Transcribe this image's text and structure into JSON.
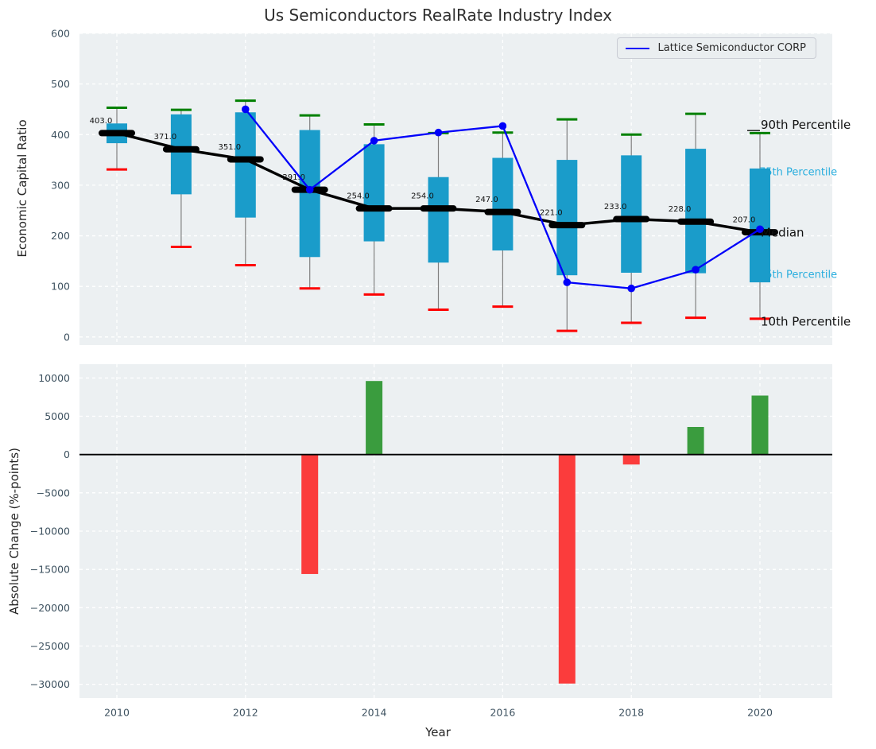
{
  "title": "Us Semiconductors RealRate Industry Index",
  "colors": {
    "panel_bg": "#ecf0f2",
    "grid": "#ffffff",
    "box_fill": "#1a9cca",
    "whisker": "#808080",
    "p90_cap": "#008000",
    "p10_cap": "#fe0000",
    "median_line": "#000000",
    "company_line": "#0000fa",
    "bar_positive": "#3a9c3e",
    "bar_negative": "#fb3c3c",
    "tick_label": "#3e5260",
    "annotation_black": "#111111",
    "annotation_cyan": "#2aaede"
  },
  "chart_data": [
    {
      "type": "box-line",
      "title": "Us Semiconductors RealRate Industry Index",
      "ylabel": "Economic Capital Ratio",
      "ylim": [
        -16,
        600
      ],
      "yticks": [
        0,
        100,
        200,
        300,
        400,
        500,
        600
      ],
      "grid": "white dashed on light gray",
      "legend_label": "Lattice Semiconductor CORP",
      "legend_position": "upper right",
      "years": [
        2010,
        2011,
        2012,
        2013,
        2014,
        2015,
        2016,
        2017,
        2018,
        2019,
        2020
      ],
      "series": [
        {
          "name": "median",
          "values": [
            403,
            371,
            351,
            291,
            254,
            254,
            247,
            221,
            233,
            228,
            207
          ]
        },
        {
          "name": "q3_75th",
          "values": [
            422,
            440,
            444,
            409,
            381,
            316,
            354,
            350,
            359,
            372,
            333
          ]
        },
        {
          "name": "q1_25th",
          "values": [
            383,
            282,
            236,
            158,
            189,
            147,
            171,
            122,
            127,
            126,
            108
          ]
        },
        {
          "name": "p90",
          "values": [
            453,
            449,
            467,
            438,
            420,
            403,
            404,
            430,
            400,
            441,
            403
          ]
        },
        {
          "name": "p10",
          "values": [
            331,
            178,
            142,
            96,
            84,
            54,
            60,
            12,
            28,
            38,
            36
          ]
        },
        {
          "name": "Lattice Semiconductor CORP",
          "values": [
            null,
            null,
            450,
            291,
            388,
            404,
            417,
            108,
            96,
            133,
            213
          ]
        }
      ],
      "median_labels": [
        "403.0",
        "371.0",
        "351.0",
        "291.0",
        "254.0",
        "254.0",
        "247.0",
        "221.0",
        "233.0",
        "228.0",
        "207.0"
      ],
      "annotations": [
        {
          "label": "90th Percentile",
          "y_value": 419,
          "color": "black",
          "size": 15
        },
        {
          "label": "75th Percentile",
          "y_value": 325,
          "color": "cyan",
          "size": 13
        },
        {
          "label": "Median",
          "y_value": 206,
          "color": "black",
          "size": 15
        },
        {
          "label": "25th Percentile",
          "y_value": 122,
          "color": "cyan",
          "size": 13
        },
        {
          "label": "10th Percentile",
          "y_value": 30,
          "color": "black",
          "size": 15
        }
      ]
    },
    {
      "type": "bar",
      "ylabel": "Absolute Change (%-points)",
      "xlabel": "Year",
      "ylim": [
        -31800,
        11800
      ],
      "yticks": [
        10000,
        5000,
        0,
        -5000,
        -10000,
        -15000,
        -20000,
        -25000,
        -30000
      ],
      "xticks": [
        2010,
        2012,
        2014,
        2016,
        2018,
        2020
      ],
      "categories": [
        2010,
        2011,
        2012,
        2013,
        2014,
        2015,
        2016,
        2017,
        2018,
        2019,
        2020
      ],
      "values": [
        0,
        0,
        0,
        -15600,
        9600,
        0,
        0,
        -29900,
        -1300,
        3600,
        7700
      ],
      "zero_line": true
    }
  ]
}
